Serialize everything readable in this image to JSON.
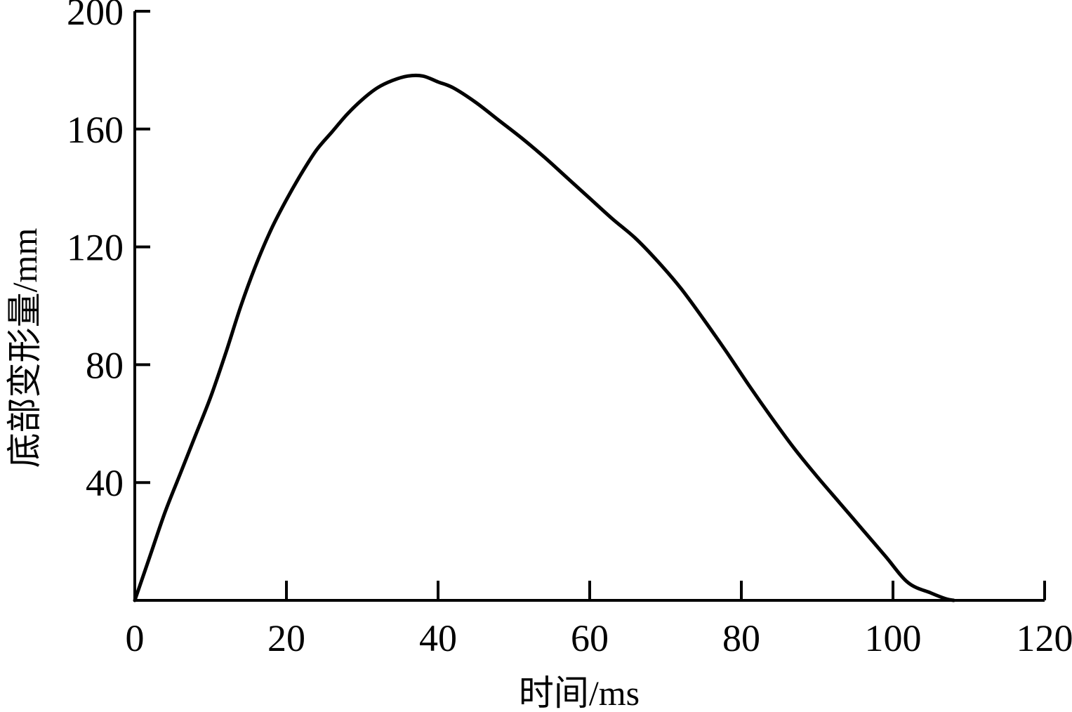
{
  "chart_data": {
    "type": "line",
    "title": "",
    "xlabel": "时间/ms",
    "ylabel": "底部变形量/mm",
    "xlim": [
      0,
      120
    ],
    "ylim": [
      0,
      200
    ],
    "x_ticks": [
      0,
      20,
      40,
      60,
      80,
      100,
      120
    ],
    "y_ticks": [
      40,
      80,
      120,
      160,
      200
    ],
    "grid": false,
    "legend": "none",
    "series": [
      {
        "x": [
          0,
          2,
          4,
          6,
          8,
          10,
          12,
          14,
          16,
          18,
          20,
          22,
          24,
          26,
          28,
          30,
          32,
          34,
          36,
          38,
          40,
          42,
          45,
          48,
          51,
          54,
          57,
          60,
          63,
          66,
          69,
          72,
          75,
          78,
          81,
          84,
          87,
          90,
          93,
          96,
          99,
          102,
          105,
          107,
          108
        ],
        "y": [
          0,
          15,
          30,
          43,
          56,
          69,
          84,
          100,
          114,
          126,
          136,
          145,
          153,
          159,
          165,
          170,
          174,
          176.5,
          178,
          178,
          176,
          174,
          169,
          163,
          157,
          150.5,
          143.5,
          136.5,
          129.5,
          123,
          115,
          106,
          95.5,
          84.5,
          73,
          62,
          51.5,
          42,
          33,
          24,
          15,
          6,
          2.5,
          0.5,
          0
        ]
      }
    ]
  },
  "colors": {
    "line": "#000000",
    "axes": "#000000",
    "background": "#ffffff"
  }
}
